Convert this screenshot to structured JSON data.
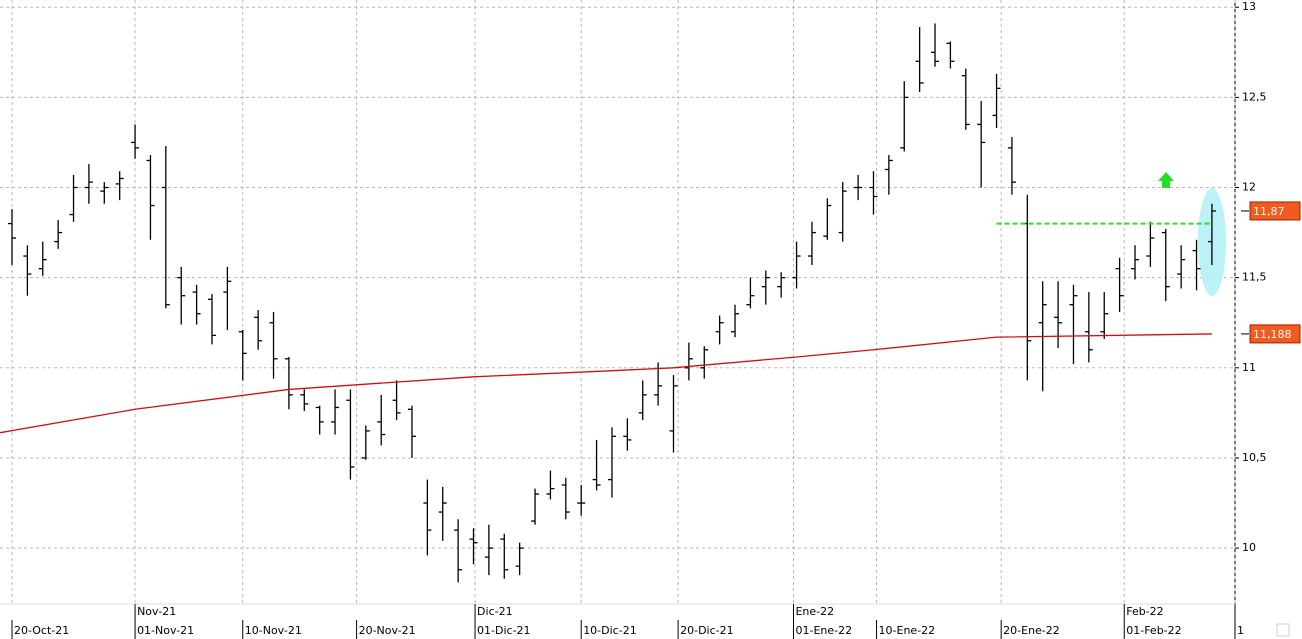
{
  "chart_data": {
    "type": "ohlc",
    "xlim": [
      -0.78,
      79.5
    ],
    "ylim": [
      9.69,
      13.04
    ],
    "yticks": [
      {
        "value": 13,
        "label": "13"
      },
      {
        "value": 12.5,
        "label": "12,5"
      },
      {
        "value": 12,
        "label": "12"
      },
      {
        "value": 11.5,
        "label": "11,5"
      },
      {
        "value": 11,
        "label": "11"
      },
      {
        "value": 10.5,
        "label": "10,5"
      },
      {
        "value": 10,
        "label": "10"
      }
    ],
    "xticks": [
      {
        "value": 0,
        "label": "20-Oct-21"
      },
      {
        "value": 8,
        "label": "01-Nov-21"
      },
      {
        "value": 15,
        "label": "10-Nov-21"
      },
      {
        "value": 22.4,
        "label": "20-Nov-21"
      },
      {
        "value": 30.1,
        "label": "01-Dic-21"
      },
      {
        "value": 37,
        "label": "10-Dic-21"
      },
      {
        "value": 43.3,
        "label": "20-Dic-21"
      },
      {
        "value": 50.8,
        "label": "01-Ene-22"
      },
      {
        "value": 56.2,
        "label": "10-Ene-22"
      },
      {
        "value": 64.3,
        "label": "20-Ene-22"
      },
      {
        "value": 72.3,
        "label": "01-Feb-22"
      },
      {
        "value": 79.5,
        "label": "1"
      }
    ],
    "month_ticks": [
      {
        "value": 8,
        "label": "Nov-21"
      },
      {
        "value": 30.1,
        "label": "Dic-21"
      },
      {
        "value": 50.8,
        "label": "Ene-22"
      },
      {
        "value": 72.3,
        "label": "Feb-22"
      }
    ],
    "grid": true,
    "color": "#000000",
    "open": [
      11.8,
      11.62,
      11.55,
      11.7,
      11.85,
      12.0,
      11.98,
      12.02,
      12.25,
      12.15,
      12.0,
      11.5,
      11.42,
      11.38,
      11.42,
      11.2,
      11.28,
      11.25,
      11.05,
      10.85,
      10.78,
      10.7,
      10.82,
      10.5,
      10.7,
      10.82,
      10.77,
      10.25,
      10.2,
      10.1,
      10.05,
      9.95,
      10.05,
      9.9,
      10.15,
      10.3,
      10.35,
      10.25,
      10.38,
      10.38,
      10.62,
      10.75,
      10.85,
      10.65,
      11.0,
      11.0,
      11.2,
      11.2,
      11.35,
      11.45,
      11.45,
      11.5,
      11.62,
      11.73,
      11.75,
      12.0,
      12.0,
      12.1,
      12.22,
      12.7,
      12.75,
      12.8,
      12.62,
      12.35,
      12.4,
      12.22,
      11.8,
      11.25,
      11.28,
      11.35,
      11.2,
      11.2,
      11.55,
      11.55,
      11.62,
      11.75,
      11.52,
      11.65,
      11.7
    ],
    "high": [
      11.88,
      11.68,
      11.7,
      11.82,
      12.07,
      12.13,
      12.03,
      12.09,
      12.35,
      12.18,
      12.23,
      11.56,
      11.46,
      11.41,
      11.56,
      11.21,
      11.32,
      11.31,
      11.06,
      10.88,
      10.79,
      10.88,
      10.88,
      10.68,
      10.85,
      10.93,
      10.79,
      10.38,
      10.34,
      10.16,
      10.11,
      10.13,
      10.08,
      10.03,
      10.33,
      10.43,
      10.39,
      10.35,
      10.6,
      10.67,
      10.72,
      10.93,
      11.03,
      10.96,
      11.14,
      11.12,
      11.29,
      11.35,
      11.5,
      11.54,
      11.53,
      11.7,
      11.81,
      11.94,
      12.03,
      12.07,
      12.09,
      12.18,
      12.59,
      12.89,
      12.91,
      12.81,
      12.66,
      12.48,
      12.63,
      12.28,
      11.96,
      11.48,
      11.48,
      11.46,
      11.42,
      11.42,
      11.61,
      11.68,
      11.81,
      11.77,
      11.68,
      11.71,
      11.91
    ],
    "low": [
      11.57,
      11.4,
      11.51,
      11.66,
      11.81,
      11.91,
      11.91,
      11.93,
      12.16,
      11.71,
      11.33,
      11.24,
      11.24,
      11.13,
      11.21,
      10.93,
      11.1,
      10.94,
      10.77,
      10.76,
      10.63,
      10.63,
      10.38,
      10.49,
      10.57,
      10.71,
      10.5,
      9.96,
      10.04,
      9.81,
      9.91,
      9.85,
      9.83,
      9.85,
      10.13,
      10.27,
      10.16,
      10.18,
      10.32,
      10.28,
      10.54,
      10.71,
      10.79,
      10.53,
      10.93,
      10.94,
      11.13,
      11.17,
      11.33,
      11.35,
      11.39,
      11.44,
      11.57,
      11.71,
      11.7,
      11.93,
      11.85,
      11.96,
      12.2,
      12.53,
      12.67,
      12.66,
      12.32,
      12.0,
      12.33,
      11.96,
      10.93,
      10.87,
      11.11,
      11.02,
      11.03,
      11.16,
      11.31,
      11.49,
      11.56,
      11.37,
      11.44,
      11.43,
      11.57
    ],
    "close": [
      11.72,
      11.52,
      11.6,
      11.75,
      12.0,
      12.03,
      12.0,
      12.05,
      12.22,
      11.9,
      11.35,
      11.4,
      11.3,
      11.18,
      11.48,
      11.08,
      11.15,
      11.05,
      10.85,
      10.8,
      10.7,
      10.78,
      10.45,
      10.65,
      10.63,
      10.75,
      10.62,
      10.1,
      10.25,
      9.88,
      10.03,
      10.0,
      9.88,
      10.0,
      10.3,
      10.33,
      10.2,
      10.25,
      10.35,
      10.62,
      10.6,
      10.85,
      10.9,
      10.9,
      11.05,
      11.1,
      11.25,
      11.3,
      11.4,
      11.5,
      11.5,
      11.62,
      11.75,
      11.9,
      11.98,
      12.0,
      11.95,
      12.15,
      12.5,
      12.58,
      12.7,
      12.7,
      12.35,
      12.25,
      12.55,
      12.03,
      11.15,
      11.35,
      11.25,
      11.4,
      11.1,
      11.3,
      11.4,
      11.6,
      11.72,
      11.45,
      11.6,
      11.55,
      11.87
    ],
    "ma": {
      "color": "#d01010",
      "x": [
        -0.78,
        8,
        18,
        30,
        38,
        43,
        51,
        56,
        64,
        78
      ],
      "values": [
        10.64,
        10.77,
        10.88,
        10.95,
        10.98,
        11.0,
        11.06,
        11.1,
        11.17,
        11.188
      ]
    },
    "level": {
      "value": 11.8,
      "from": 64,
      "to": 78,
      "color": "#22e022"
    },
    "last_labels": [
      {
        "value": 11.87,
        "label": "11,87"
      },
      {
        "value": 11.188,
        "label": "11,188"
      }
    ]
  }
}
